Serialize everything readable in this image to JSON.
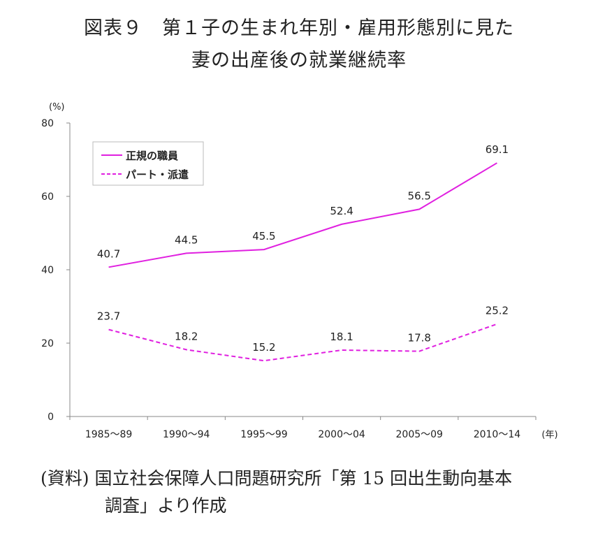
{
  "title": {
    "line1": "図表９　第１子の生まれ年別・雇用形態別に見た",
    "line2": "妻の出産後の就業継続率"
  },
  "source": {
    "line1": "(資料) 国立社会保障人口問題研究所「第 15 回出生動向基本",
    "line2": "調査」より作成"
  },
  "chart_data": {
    "type": "line",
    "ylabel": "(%)",
    "xlabel": "(年)",
    "ylim": [
      0,
      80
    ],
    "yticks": [
      0,
      20,
      40,
      60,
      80
    ],
    "categories": [
      "1985～89",
      "1990～94",
      "1995～99",
      "2000～04",
      "2005～09",
      "2010～14"
    ],
    "series": [
      {
        "name": "正規の職員",
        "values": [
          40.7,
          44.5,
          45.5,
          52.4,
          56.5,
          69.1
        ],
        "color": "#e020e0",
        "dash": false
      },
      {
        "name": "パート・派遣",
        "values": [
          23.7,
          18.2,
          15.2,
          18.1,
          17.8,
          25.2
        ],
        "color": "#e020e0",
        "dash": true
      }
    ],
    "legend": "top-left",
    "grid": false
  }
}
